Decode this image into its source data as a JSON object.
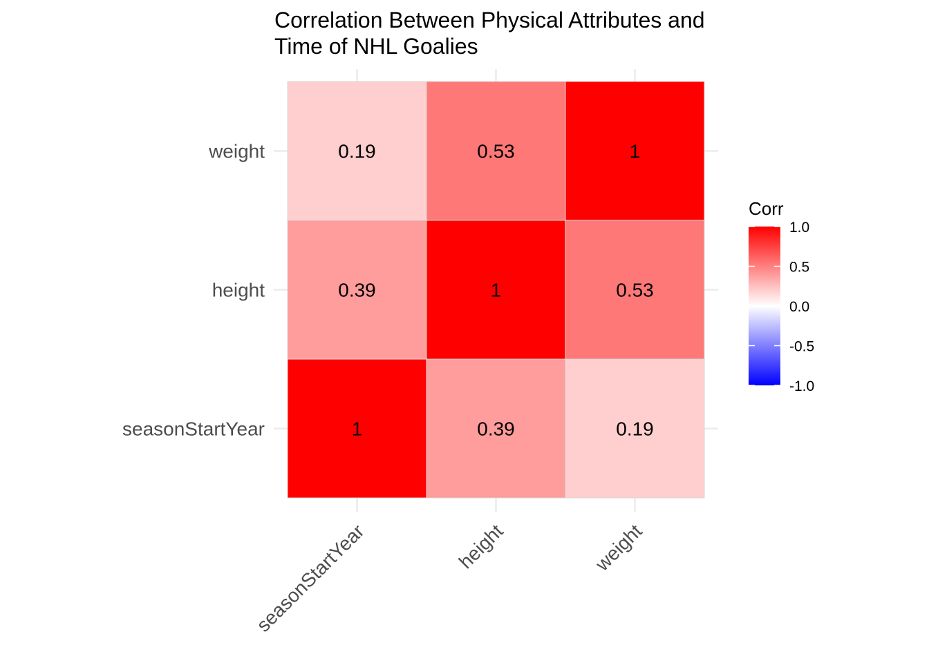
{
  "chart_data": {
    "type": "heatmap",
    "title": "Correlation Between Physical Attributes and Time of NHL Goalies",
    "title_lines": [
      "Correlation Between Physical Attributes and",
      "Time of NHL Goalies"
    ],
    "x_categories": [
      "seasonStartYear",
      "height",
      "weight"
    ],
    "y_categories": [
      "seasonStartYear",
      "height",
      "weight"
    ],
    "values": [
      [
        1,
        0.39,
        0.19
      ],
      [
        0.39,
        1,
        0.53
      ],
      [
        0.19,
        0.53,
        1
      ]
    ],
    "value_labels": [
      [
        "1",
        "0.39",
        "0.19"
      ],
      [
        "0.39",
        "1",
        "0.53"
      ],
      [
        "0.19",
        "0.53",
        "1"
      ]
    ],
    "legend": {
      "title": "Corr",
      "placement": "right",
      "limits": [
        -1,
        1
      ],
      "ticks": [
        1.0,
        0.5,
        0.0,
        -0.5,
        -1.0
      ],
      "tick_labels": [
        "1.0",
        "0.5",
        "0.0",
        "-0.5",
        "-1.0"
      ],
      "colors": {
        "low": "#0000ff",
        "mid": "#ffffff",
        "high": "#ff0000"
      }
    },
    "grid": true,
    "xlabel": "",
    "ylabel": ""
  }
}
